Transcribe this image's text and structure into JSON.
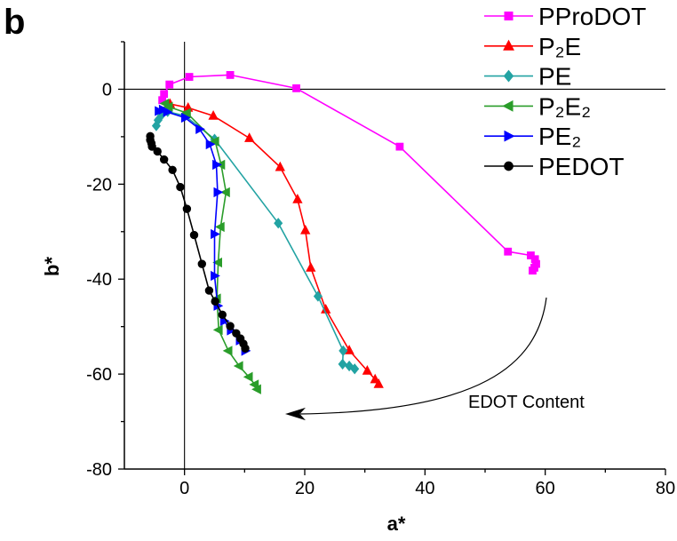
{
  "panel_label": "b",
  "chart_data": {
    "type": "line",
    "xlabel": "a*",
    "ylabel": "b*",
    "xlim": [
      -10,
      80
    ],
    "ylim": [
      -80,
      10
    ],
    "x_ticks": [
      0,
      20,
      40,
      60,
      80
    ],
    "x_tick_labels": [
      "0",
      "20",
      "40",
      "60",
      "80"
    ],
    "y_ticks": [
      -80,
      -60,
      -40,
      -20,
      0
    ],
    "y_tick_labels": [
      "-80",
      "-60",
      "-40",
      "-20",
      "0"
    ],
    "grid": false,
    "reference_lines": {
      "x": 0,
      "y": 0
    },
    "legend": {
      "placement": "top-right"
    },
    "series": [
      {
        "name": "PProDOT",
        "color": "#FF00FF",
        "marker": "square",
        "x": [
          -3.7,
          -3.4,
          -2.5,
          0.8,
          7.6,
          18.6,
          35.8,
          53.8,
          57.6,
          58.3,
          58.5,
          58.2,
          57.9
        ],
        "y": [
          -2.3,
          -1.0,
          1.0,
          2.6,
          3.0,
          0.2,
          -12.1,
          -34.2,
          -35.0,
          -35.8,
          -36.8,
          -37.6,
          -38.2
        ]
      },
      {
        "name": "P₂E",
        "color": "#FF0000",
        "marker": "triangle-up",
        "x": [
          -2.4,
          0.6,
          4.8,
          10.8,
          15.9,
          18.8,
          20.1,
          21.0,
          23.5,
          27.4,
          30.4,
          31.7,
          32.3
        ],
        "y": [
          -3.1,
          -3.9,
          -5.6,
          -10.3,
          -16.4,
          -23.2,
          -29.7,
          -37.6,
          -46.4,
          -55.0,
          -59.3,
          -61.1,
          -62.1
        ]
      },
      {
        "name": "PE",
        "color": "#23A3A3",
        "marker": "diamond",
        "x": [
          -4.7,
          -4.4,
          -3.8,
          -2.8,
          0.1,
          5.0,
          15.6,
          22.2,
          26.4,
          26.3,
          27.4,
          28.3
        ],
        "y": [
          -7.7,
          -6.5,
          -5.4,
          -4.7,
          -5.6,
          -10.5,
          -28.2,
          -43.6,
          -55.1,
          -57.9,
          -58.3,
          -58.9
        ]
      },
      {
        "name": "P₂E₂",
        "color": "#2A9D2A",
        "marker": "triangle-left",
        "x": [
          -3.2,
          -2.6,
          0.4,
          5.1,
          6.1,
          6.9,
          6.0,
          5.6,
          5.4,
          5.7,
          7.3,
          9.1,
          10.7,
          11.7,
          12.1
        ],
        "y": [
          -3.0,
          -3.7,
          -5.0,
          -11.0,
          -15.9,
          -21.7,
          -29.0,
          -36.5,
          -44.1,
          -50.7,
          -55.1,
          -58.3,
          -60.6,
          -62.2,
          -63.2
        ]
      },
      {
        "name": "PE₂",
        "color": "#0000FF",
        "marker": "triangle-right",
        "x": [
          -4.3,
          -3.6,
          -2.9,
          0.1,
          2.5,
          4.2,
          5.3,
          5.5,
          5.0,
          5.0,
          5.5,
          6.6,
          7.7,
          9.2,
          10.1
        ],
        "y": [
          -4.6,
          -4.3,
          -4.8,
          -6.0,
          -8.4,
          -11.6,
          -15.9,
          -21.7,
          -30.5,
          -39.3,
          -45.6,
          -48.8,
          -50.8,
          -52.9,
          -55.1
        ]
      },
      {
        "name": "PEDOT",
        "color": "#000000",
        "marker": "circle",
        "x": [
          -5.7,
          -5.7,
          -5.5,
          -5.4,
          -4.5,
          -3.4,
          -2.0,
          -0.7,
          0.4,
          1.6,
          2.9,
          4.1,
          5.1,
          6.3,
          7.6,
          8.6,
          9.3,
          9.8,
          10.1
        ],
        "y": [
          -9.9,
          -10.7,
          -11.4,
          -12.1,
          -13.1,
          -14.8,
          -17.0,
          -20.6,
          -25.2,
          -30.7,
          -36.8,
          -42.4,
          -44.7,
          -47.5,
          -49.9,
          -51.4,
          -52.5,
          -53.6,
          -54.6
        ]
      }
    ],
    "annotations": [
      {
        "text": "EDOT Content"
      }
    ]
  }
}
